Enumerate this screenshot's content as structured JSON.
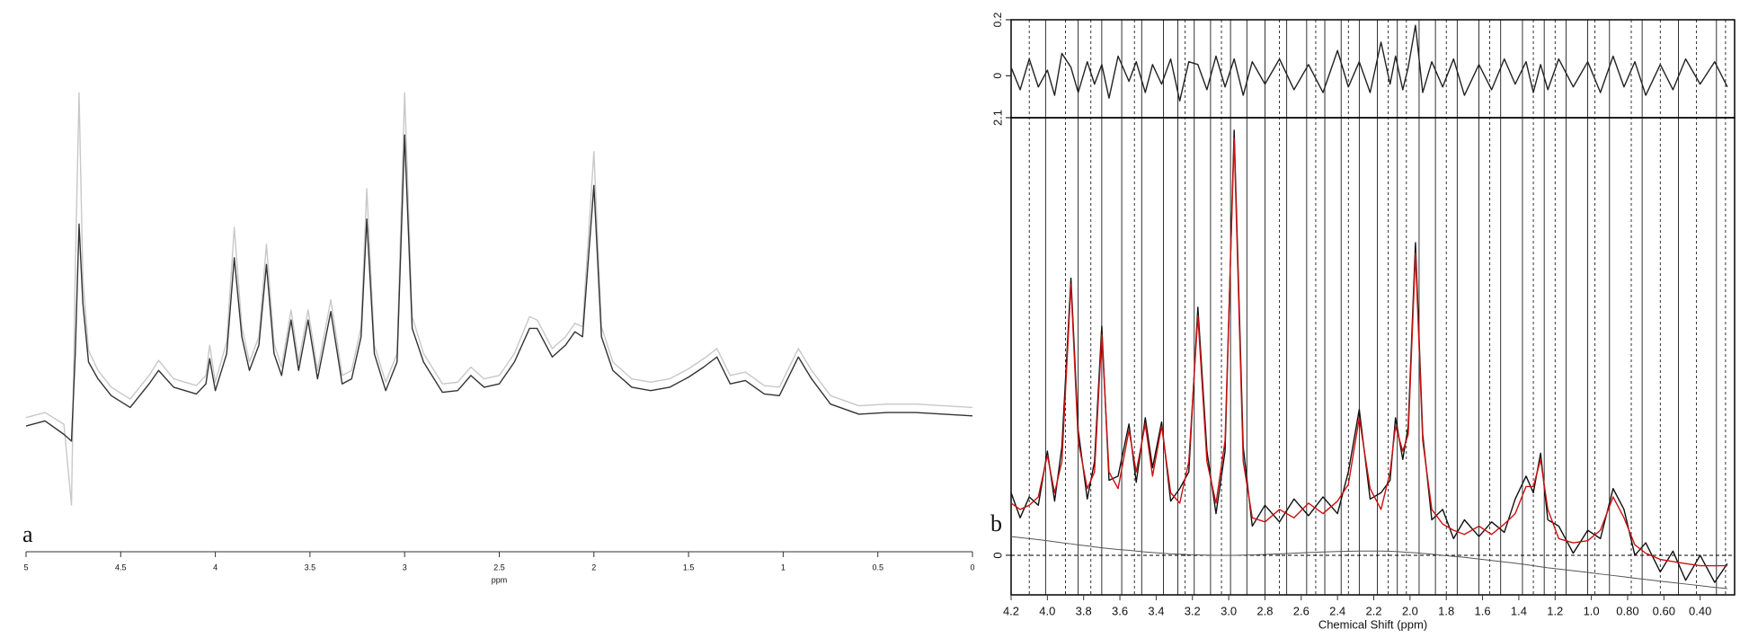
{
  "chart_data": [
    {
      "type": "line",
      "panel_label": "a",
      "xlabel": "ppm",
      "xlim": [
        5,
        0
      ],
      "xticks": [
        5,
        4.5,
        4,
        3.5,
        3,
        2.5,
        2,
        1.5,
        1,
        0.5,
        0
      ],
      "ylim": [
        -0.5,
        2.0
      ],
      "x": [
        5.0,
        4.9,
        4.8,
        4.76,
        4.74,
        4.72,
        4.7,
        4.67,
        4.62,
        4.55,
        4.45,
        4.35,
        4.3,
        4.22,
        4.1,
        4.05,
        4.03,
        4.0,
        3.94,
        3.9,
        3.86,
        3.82,
        3.77,
        3.73,
        3.69,
        3.65,
        3.6,
        3.56,
        3.51,
        3.46,
        3.39,
        3.33,
        3.28,
        3.23,
        3.2,
        3.16,
        3.1,
        3.04,
        3.0,
        2.96,
        2.9,
        2.8,
        2.72,
        2.65,
        2.58,
        2.5,
        2.42,
        2.34,
        2.3,
        2.22,
        2.15,
        2.1,
        2.06,
        2.0,
        1.96,
        1.9,
        1.8,
        1.7,
        1.6,
        1.5,
        1.42,
        1.35,
        1.28,
        1.2,
        1.1,
        1.02,
        0.92,
        0.85,
        0.75,
        0.6,
        0.45,
        0.3,
        0.15,
        0.0
      ],
      "series": [
        {
          "color": "#c8c8c8",
          "values": [
            0.02,
            0.05,
            -0.02,
            -0.5,
            0.9,
            1.95,
            0.85,
            0.42,
            0.3,
            0.2,
            0.13,
            0.27,
            0.36,
            0.25,
            0.21,
            0.27,
            0.45,
            0.23,
            0.47,
            1.15,
            0.56,
            0.35,
            0.5,
            1.05,
            0.46,
            0.32,
            0.66,
            0.35,
            0.66,
            0.3,
            0.72,
            0.27,
            0.3,
            0.56,
            1.38,
            0.45,
            0.23,
            0.4,
            1.95,
            0.62,
            0.4,
            0.22,
            0.23,
            0.32,
            0.25,
            0.27,
            0.4,
            0.62,
            0.6,
            0.43,
            0.5,
            0.58,
            0.56,
            1.6,
            0.56,
            0.35,
            0.25,
            0.23,
            0.25,
            0.31,
            0.37,
            0.43,
            0.27,
            0.29,
            0.21,
            0.2,
            0.43,
            0.3,
            0.15,
            0.09,
            0.1,
            0.1,
            0.09,
            0.08
          ]
        },
        {
          "color": "#333333",
          "values": [
            -0.03,
            0.0,
            -0.08,
            -0.12,
            0.4,
            1.17,
            0.7,
            0.35,
            0.25,
            0.15,
            0.08,
            0.22,
            0.3,
            0.2,
            0.16,
            0.22,
            0.37,
            0.18,
            0.4,
            0.97,
            0.5,
            0.3,
            0.45,
            0.93,
            0.4,
            0.27,
            0.6,
            0.3,
            0.6,
            0.25,
            0.65,
            0.22,
            0.25,
            0.5,
            1.2,
            0.4,
            0.18,
            0.35,
            1.7,
            0.55,
            0.35,
            0.17,
            0.18,
            0.27,
            0.2,
            0.22,
            0.35,
            0.55,
            0.55,
            0.38,
            0.45,
            0.53,
            0.5,
            1.4,
            0.5,
            0.3,
            0.2,
            0.18,
            0.2,
            0.26,
            0.32,
            0.38,
            0.22,
            0.24,
            0.16,
            0.15,
            0.38,
            0.25,
            0.1,
            0.04,
            0.05,
            0.05,
            0.04,
            0.03
          ]
        }
      ]
    },
    {
      "type": "line",
      "xlim": [
        4.2,
        0.21
      ],
      "ylim": [
        -0.15,
        0.2
      ],
      "yticks": [
        0,
        0.2
      ],
      "x": [
        4.2,
        4.15,
        4.1,
        4.05,
        4.0,
        3.96,
        3.92,
        3.87,
        3.83,
        3.78,
        3.74,
        3.7,
        3.66,
        3.61,
        3.55,
        3.51,
        3.46,
        3.42,
        3.37,
        3.32,
        3.27,
        3.22,
        3.17,
        3.12,
        3.07,
        3.02,
        2.97,
        2.92,
        2.87,
        2.8,
        2.72,
        2.64,
        2.56,
        2.48,
        2.4,
        2.34,
        2.28,
        2.22,
        2.16,
        2.11,
        2.08,
        2.04,
        2.01,
        1.97,
        1.93,
        1.88,
        1.82,
        1.76,
        1.7,
        1.62,
        1.55,
        1.48,
        1.42,
        1.36,
        1.32,
        1.28,
        1.24,
        1.18,
        1.1,
        1.02,
        0.95,
        0.88,
        0.82,
        0.76,
        0.7,
        0.62,
        0.55,
        0.48,
        0.4,
        0.32,
        0.25
      ],
      "series": [
        {
          "color": "#222222",
          "values": [
            0.03,
            -0.05,
            0.06,
            -0.04,
            0.02,
            -0.07,
            0.08,
            0.03,
            -0.06,
            0.05,
            -0.03,
            0.04,
            -0.08,
            0.07,
            -0.02,
            0.05,
            -0.06,
            0.04,
            -0.03,
            0.06,
            -0.09,
            0.05,
            0.04,
            -0.05,
            0.07,
            -0.04,
            0.06,
            -0.07,
            0.05,
            -0.03,
            0.06,
            -0.05,
            0.04,
            -0.06,
            0.09,
            -0.04,
            0.05,
            -0.06,
            0.12,
            -0.03,
            0.07,
            -0.05,
            0.03,
            0.18,
            -0.06,
            0.05,
            -0.04,
            0.06,
            -0.07,
            0.04,
            -0.05,
            0.06,
            -0.03,
            0.05,
            -0.06,
            0.04,
            -0.05,
            0.06,
            -0.04,
            0.05,
            -0.06,
            0.07,
            -0.04,
            0.05,
            -0.07,
            0.04,
            -0.05,
            0.06,
            -0.03,
            0.05,
            -0.04
          ]
        }
      ]
    },
    {
      "type": "line",
      "panel_label": "b",
      "xlabel": "Chemical Shift (ppm)",
      "xlim": [
        4.2,
        0.21
      ],
      "xticks": [
        4.2,
        {
          "value": 4,
          "label": "4.0"
        },
        3.8,
        3.6,
        3.4,
        3.2,
        {
          "value": 3,
          "label": "3.0"
        },
        2.8,
        2.6,
        2.4,
        2.2,
        {
          "value": 2,
          "label": "2.0"
        },
        1.8,
        1.6,
        1.4,
        1.2,
        {
          "value": 1,
          "label": "1.0"
        },
        {
          "value": 0.8,
          "label": "0.80"
        },
        {
          "value": 0.6,
          "label": "0.60"
        },
        {
          "value": 0.4,
          "label": "0.40"
        }
      ],
      "ylim": [
        -0.19,
        2.1
      ],
      "yticks": [
        0,
        2.1
      ],
      "peak_lines": [
        4.01,
        3.83,
        3.7,
        3.59,
        3.48,
        3.36,
        3.28,
        3.19,
        3.1,
        2.99,
        2.9,
        2.8,
        2.68,
        2.57,
        2.47,
        2.38,
        2.28,
        2.18,
        2.07,
        1.95,
        1.86,
        1.74,
        1.62,
        1.5,
        1.38,
        1.26,
        1.14,
        1.02,
        0.9,
        0.72,
        0.52,
        0.31
      ],
      "peak_lines_dashed": [
        4.1,
        3.9,
        3.76,
        3.52,
        3.24,
        3.04,
        2.72,
        2.52,
        2.34,
        2.12,
        2.02,
        1.8,
        1.56,
        1.32,
        1.2,
        0.98,
        0.78,
        0.62,
        0.42,
        0.26
      ],
      "x": [
        4.2,
        4.15,
        4.1,
        4.05,
        4.0,
        3.96,
        3.92,
        3.87,
        3.83,
        3.78,
        3.74,
        3.7,
        3.66,
        3.61,
        3.55,
        3.51,
        3.46,
        3.42,
        3.37,
        3.32,
        3.27,
        3.22,
        3.17,
        3.12,
        3.07,
        3.02,
        2.97,
        2.92,
        2.87,
        2.8,
        2.72,
        2.64,
        2.56,
        2.48,
        2.4,
        2.34,
        2.28,
        2.22,
        2.16,
        2.11,
        2.08,
        2.04,
        2.01,
        1.97,
        1.93,
        1.88,
        1.82,
        1.76,
        1.7,
        1.62,
        1.55,
        1.48,
        1.42,
        1.36,
        1.32,
        1.28,
        1.24,
        1.18,
        1.1,
        1.02,
        0.95,
        0.88,
        0.82,
        0.76,
        0.7,
        0.62,
        0.55,
        0.48,
        0.4,
        0.32,
        0.25
      ],
      "series": [
        {
          "color": "#555555",
          "values": [
            0.09,
            0.085,
            0.08,
            0.075,
            0.07,
            0.065,
            0.06,
            0.055,
            0.05,
            0.045,
            0.04,
            0.036,
            0.032,
            0.028,
            0.024,
            0.02,
            0.016,
            0.013,
            0.01,
            0.007,
            0.005,
            0.003,
            0.002,
            0.001,
            0,
            0,
            0,
            0.001,
            0.002,
            0.004,
            0.007,
            0.01,
            0.013,
            0.016,
            0.018,
            0.019,
            0.02,
            0.02,
            0.02,
            0.019,
            0.018,
            0.016,
            0.014,
            0.012,
            0.009,
            0.005,
            0,
            -0.005,
            -0.01,
            -0.018,
            -0.025,
            -0.032,
            -0.038,
            -0.045,
            -0.05,
            -0.055,
            -0.06,
            -0.066,
            -0.074,
            -0.082,
            -0.09,
            -0.097,
            -0.103,
            -0.11,
            -0.116,
            -0.124,
            -0.131,
            -0.138,
            -0.146,
            -0.154,
            -0.16
          ]
        },
        {
          "color": "#111111",
          "values": [
            0.3,
            0.18,
            0.28,
            0.24,
            0.5,
            0.26,
            0.52,
            1.33,
            0.6,
            0.27,
            0.45,
            1.1,
            0.36,
            0.38,
            0.63,
            0.35,
            0.66,
            0.42,
            0.64,
            0.26,
            0.32,
            0.4,
            1.19,
            0.5,
            0.2,
            0.5,
            2.04,
            0.52,
            0.14,
            0.24,
            0.16,
            0.27,
            0.19,
            0.28,
            0.2,
            0.4,
            0.7,
            0.27,
            0.3,
            0.36,
            0.66,
            0.46,
            0.62,
            1.5,
            0.58,
            0.17,
            0.22,
            0.08,
            0.17,
            0.09,
            0.16,
            0.11,
            0.27,
            0.38,
            0.3,
            0.49,
            0.17,
            0.14,
            0.01,
            0.12,
            0.08,
            0.32,
            0.22,
            0.0,
            0.06,
            -0.08,
            0.02,
            -0.12,
            0.0,
            -0.13,
            -0.04
          ]
        },
        {
          "color": "#cc1111",
          "values": [
            0.25,
            0.22,
            0.24,
            0.28,
            0.48,
            0.3,
            0.45,
            1.3,
            0.55,
            0.32,
            0.4,
            1.06,
            0.4,
            0.32,
            0.6,
            0.4,
            0.63,
            0.38,
            0.62,
            0.3,
            0.25,
            0.45,
            1.15,
            0.45,
            0.25,
            0.55,
            2.0,
            0.45,
            0.18,
            0.16,
            0.22,
            0.18,
            0.25,
            0.2,
            0.26,
            0.34,
            0.66,
            0.32,
            0.22,
            0.4,
            0.62,
            0.5,
            0.58,
            1.45,
            0.55,
            0.22,
            0.15,
            0.12,
            0.1,
            0.14,
            0.1,
            0.15,
            0.2,
            0.33,
            0.33,
            0.46,
            0.22,
            0.08,
            0.06,
            0.07,
            0.12,
            0.28,
            0.18,
            0.05,
            0.01,
            -0.02,
            -0.03,
            -0.04,
            -0.05,
            -0.05,
            -0.05
          ]
        }
      ]
    }
  ]
}
